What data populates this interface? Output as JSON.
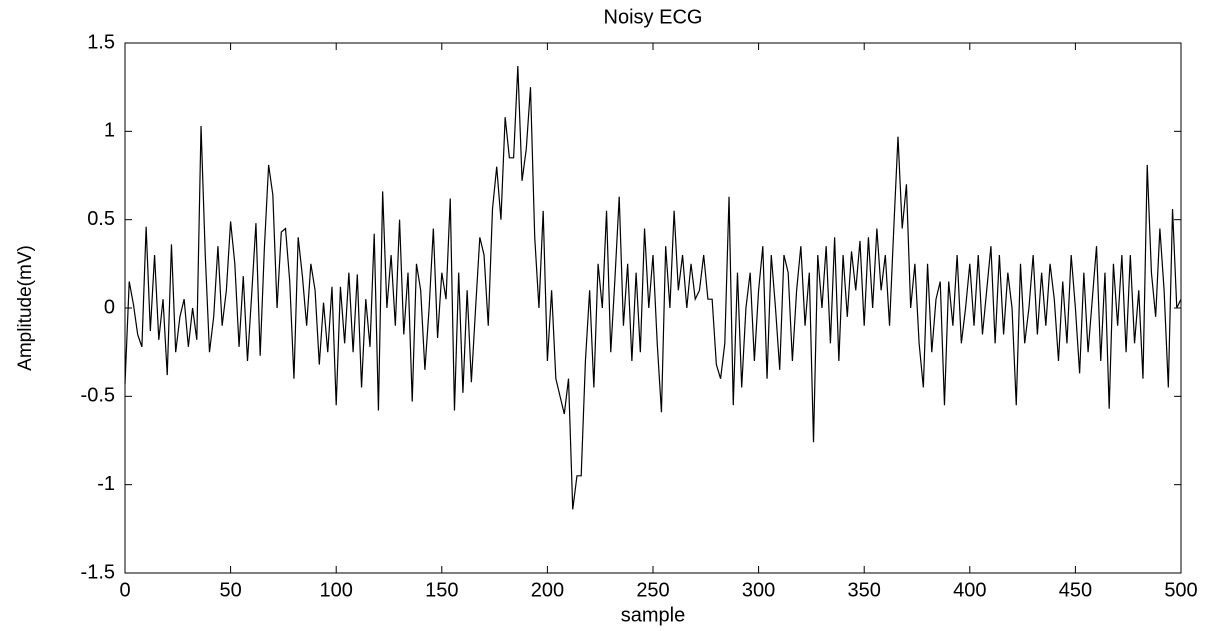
{
  "chart_data": {
    "type": "line",
    "title": "Noisy ECG",
    "x_label": "sample",
    "y_label": "Amplitude(mV)",
    "x": [
      0,
      2,
      4,
      6,
      8,
      10,
      12,
      14,
      16,
      18,
      20,
      22,
      24,
      26,
      28,
      30,
      32,
      34,
      36,
      38,
      40,
      42,
      44,
      46,
      48,
      50,
      52,
      54,
      56,
      58,
      60,
      62,
      64,
      66,
      68,
      70,
      72,
      74,
      76,
      78,
      80,
      82,
      84,
      86,
      88,
      90,
      92,
      94,
      96,
      98,
      100,
      102,
      104,
      106,
      108,
      110,
      112,
      114,
      116,
      118,
      120,
      122,
      124,
      126,
      128,
      130,
      132,
      134,
      136,
      138,
      140,
      142,
      144,
      146,
      148,
      150,
      152,
      154,
      156,
      158,
      160,
      162,
      164,
      166,
      168,
      170,
      172,
      174,
      176,
      178,
      180,
      182,
      184,
      186,
      188,
      190,
      192,
      194,
      196,
      198,
      200,
      202,
      204,
      206,
      208,
      210,
      212,
      214,
      216,
      218,
      220,
      222,
      224,
      226,
      228,
      230,
      232,
      234,
      236,
      238,
      240,
      242,
      244,
      246,
      248,
      250,
      252,
      254,
      256,
      258,
      260,
      262,
      264,
      266,
      268,
      270,
      272,
      274,
      276,
      278,
      280,
      282,
      284,
      286,
      288,
      290,
      292,
      294,
      296,
      298,
      300,
      302,
      304,
      306,
      308,
      310,
      312,
      314,
      316,
      318,
      320,
      322,
      324,
      326,
      328,
      330,
      332,
      334,
      336,
      338,
      340,
      342,
      344,
      346,
      348,
      350,
      352,
      354,
      356,
      358,
      360,
      362,
      364,
      366,
      368,
      370,
      372,
      374,
      376,
      378,
      380,
      382,
      384,
      386,
      388,
      390,
      392,
      394,
      396,
      398,
      400,
      402,
      404,
      406,
      408,
      410,
      412,
      414,
      416,
      418,
      420,
      422,
      424,
      426,
      428,
      430,
      432,
      434,
      436,
      438,
      440,
      442,
      444,
      446,
      448,
      450,
      452,
      454,
      456,
      458,
      460,
      462,
      464,
      466,
      468,
      470,
      472,
      474,
      476,
      478,
      480,
      482,
      484,
      486,
      488,
      490,
      492,
      494,
      496,
      498,
      500
    ],
    "series": [
      {
        "color": "#000000",
        "values": [
          -0.43,
          0.15,
          0.02,
          -0.15,
          -0.22,
          0.46,
          -0.13,
          0.3,
          -0.18,
          0.05,
          -0.38,
          0.36,
          -0.25,
          -0.05,
          0.05,
          -0.22,
          0.0,
          -0.18,
          1.03,
          0.3,
          -0.25,
          -0.05,
          0.35,
          -0.1,
          0.1,
          0.49,
          0.25,
          -0.22,
          0.18,
          -0.3,
          0.08,
          0.48,
          -0.27,
          0.34,
          0.81,
          0.64,
          0.0,
          0.43,
          0.45,
          0.15,
          -0.4,
          0.4,
          0.18,
          -0.1,
          0.25,
          0.1,
          -0.32,
          0.03,
          -0.25,
          0.12,
          -0.55,
          0.12,
          -0.2,
          0.2,
          -0.25,
          0.19,
          -0.45,
          0.05,
          -0.22,
          0.42,
          -0.58,
          0.66,
          0.0,
          0.3,
          -0.1,
          0.5,
          -0.15,
          0.2,
          -0.53,
          0.25,
          0.1,
          -0.35,
          0.0,
          0.45,
          -0.17,
          0.2,
          0.05,
          0.62,
          -0.58,
          0.2,
          -0.48,
          0.1,
          -0.42,
          0.0,
          0.4,
          0.3,
          -0.1,
          0.56,
          0.8,
          0.5,
          1.08,
          0.85,
          0.85,
          1.37,
          0.72,
          0.9,
          1.25,
          0.4,
          0.0,
          0.55,
          -0.3,
          0.1,
          -0.4,
          -0.5,
          -0.6,
          -0.4,
          -1.14,
          -0.95,
          -0.95,
          -0.3,
          0.1,
          -0.45,
          0.25,
          0.0,
          0.55,
          -0.25,
          0.17,
          0.63,
          -0.1,
          0.25,
          -0.3,
          0.2,
          -0.25,
          0.45,
          0.0,
          0.3,
          -0.2,
          -0.59,
          0.35,
          0.0,
          0.55,
          0.1,
          0.3,
          0.0,
          0.25,
          0.05,
          0.1,
          0.3,
          0.05,
          0.05,
          -0.32,
          -0.4,
          -0.2,
          0.63,
          -0.55,
          0.2,
          -0.45,
          0.0,
          0.2,
          -0.3,
          0.1,
          0.35,
          -0.4,
          0.3,
          0.0,
          -0.35,
          0.3,
          0.2,
          -0.3,
          0.1,
          0.35,
          -0.1,
          0.2,
          -0.76,
          0.3,
          0.0,
          0.35,
          -0.2,
          0.4,
          -0.3,
          0.3,
          -0.05,
          0.32,
          0.1,
          0.38,
          -0.1,
          0.4,
          0.0,
          0.45,
          0.1,
          0.3,
          -0.1,
          0.45,
          0.97,
          0.45,
          0.7,
          0.0,
          0.25,
          -0.2,
          -0.45,
          0.25,
          -0.25,
          0.05,
          0.15,
          -0.55,
          0.15,
          -0.1,
          0.3,
          -0.2,
          0.0,
          0.25,
          -0.1,
          0.3,
          -0.15,
          0.1,
          0.35,
          -0.2,
          0.3,
          -0.15,
          0.2,
          0.0,
          -0.55,
          0.25,
          -0.2,
          0.0,
          0.3,
          -0.15,
          0.2,
          -0.1,
          0.25,
          0.05,
          -0.3,
          0.15,
          -0.2,
          0.3,
          0.0,
          -0.37,
          0.2,
          -0.25,
          0.05,
          0.35,
          -0.3,
          0.2,
          -0.57,
          0.25,
          -0.1,
          0.3,
          -0.25,
          0.3,
          -0.2,
          0.1,
          -0.4,
          0.81,
          0.2,
          -0.05,
          0.45,
          0.1,
          -0.45,
          0.56,
          0.0,
          0.05
        ]
      }
    ],
    "xlim": [
      0,
      500
    ],
    "xticks": [
      0,
      50,
      100,
      150,
      200,
      250,
      300,
      350,
      400,
      450,
      500
    ],
    "ylim": [
      -1.5,
      1.5
    ],
    "yticks": [
      -1.5,
      -1,
      -0.5,
      0,
      0.5,
      1,
      1.5
    ]
  }
}
